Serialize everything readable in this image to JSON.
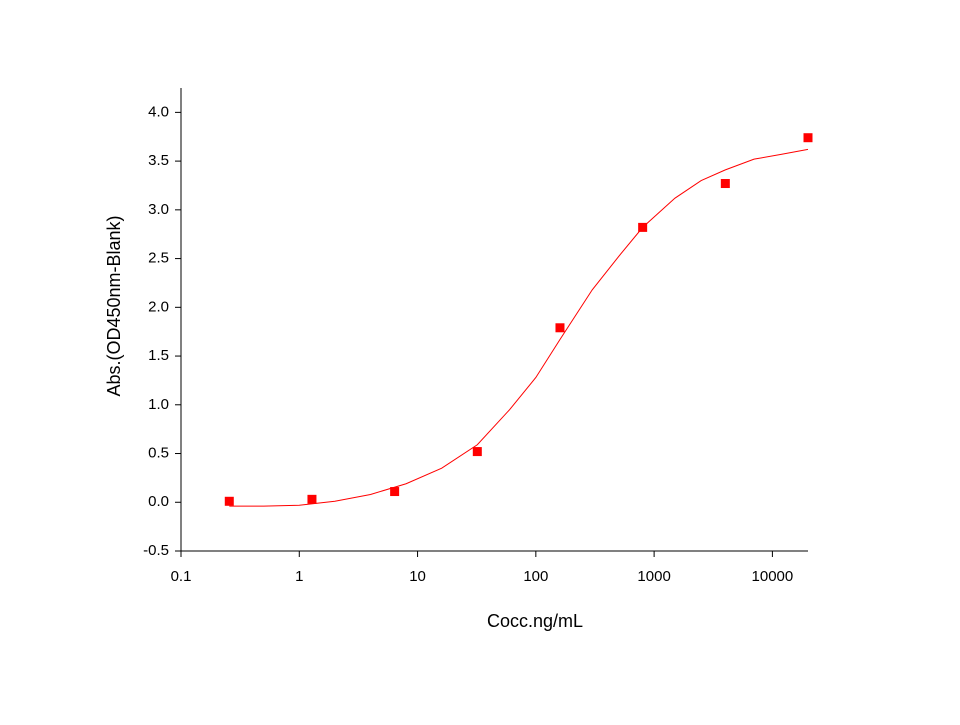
{
  "chart_data": {
    "type": "scatter",
    "xlabel": "Cocc.ng/mL",
    "ylabel": "Abs.(OD450nm-Blank)",
    "xscale": "log",
    "xlim": [
      0.1,
      20000
    ],
    "ylim": [
      -0.5,
      4.25
    ],
    "xticks": [
      0.1,
      1,
      10,
      100,
      1000,
      10000
    ],
    "yticks": [
      -0.5,
      {
        "value": 0,
        "label": "0.0"
      },
      0.5,
      {
        "value": 1,
        "label": "1.0"
      },
      1.5,
      {
        "value": 2,
        "label": "2.0"
      },
      2.5,
      {
        "value": 3,
        "label": "3.0"
      },
      3.5,
      {
        "value": 4,
        "label": "4.0"
      }
    ],
    "series": [
      {
        "color": "#ff0000",
        "marker": "square",
        "x": [
          0.256,
          1.28,
          6.4,
          32,
          160,
          800,
          4000,
          20000
        ],
        "values": [
          0.01,
          0.03,
          0.11,
          0.52,
          1.79,
          2.82,
          3.27,
          3.74
        ]
      },
      {
        "color": "#ff0000",
        "marker": "line",
        "x": [
          0.256,
          0.5,
          1,
          2,
          4,
          8,
          16,
          32,
          60,
          100,
          160,
          300,
          500,
          800,
          1500,
          2500,
          4000,
          7000,
          12000,
          20000
        ],
        "values": [
          -0.04,
          -0.04,
          -0.03,
          0.01,
          0.08,
          0.19,
          0.35,
          0.59,
          0.95,
          1.28,
          1.67,
          2.18,
          2.52,
          2.82,
          3.12,
          3.3,
          3.41,
          3.52,
          3.57,
          3.62
        ]
      }
    ]
  }
}
